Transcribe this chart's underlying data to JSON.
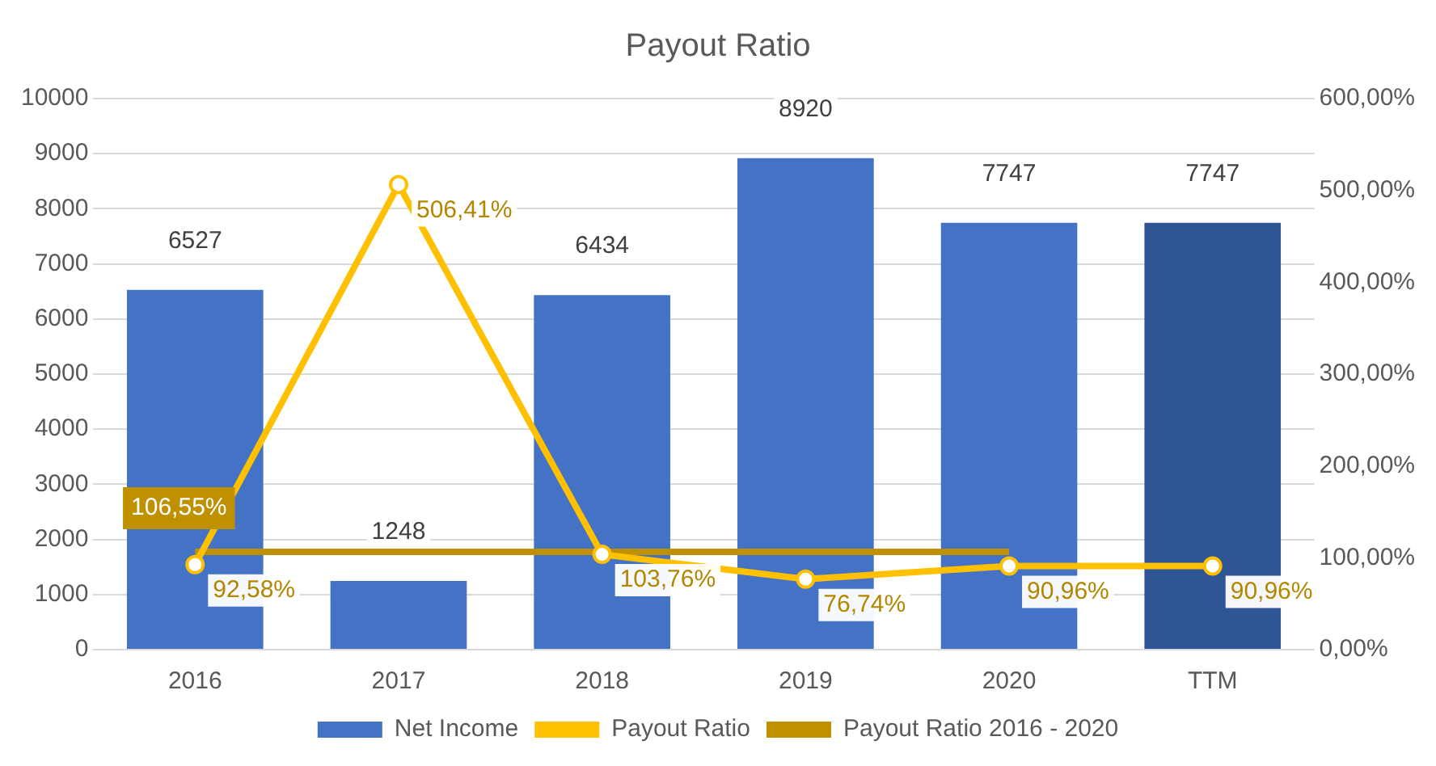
{
  "chart_data": {
    "type": "bar",
    "title": "Payout Ratio",
    "categories": [
      "2016",
      "2017",
      "2018",
      "2019",
      "2020",
      "TTM"
    ],
    "series": [
      {
        "name": "Net Income",
        "colors": [
          "#4472c4",
          "#4472c4",
          "#4472c4",
          "#4472c4",
          "#4472c4",
          "#2f5597"
        ],
        "color": "#4472c4",
        "values": [
          6527,
          1248,
          6434,
          8920,
          7747,
          7747
        ],
        "value_labels": [
          "6527",
          "1248",
          "6434",
          "8920",
          "7747",
          "7747"
        ]
      },
      {
        "name": "Payout Ratio",
        "type": "line",
        "axis": "y2",
        "color": "#ffc000",
        "marker": "circle",
        "values": [
          92.58,
          506.41,
          103.76,
          76.74,
          90.96,
          90.96
        ],
        "value_labels": [
          "92,58%",
          "506,41%",
          "103,76%",
          "76,74%",
          "90,96%",
          "90,96%"
        ]
      },
      {
        "name": "Payout Ratio 2016 - 2020",
        "type": "line",
        "axis": "y2",
        "color": "#bf9000",
        "marker": "none",
        "values": [
          106.55,
          106.55,
          106.55,
          106.55,
          106.55,
          null
        ],
        "value_labels": [
          "106,55%",
          null,
          null,
          null,
          null,
          null
        ]
      }
    ],
    "ylim": [
      0,
      10000
    ],
    "yticks": [
      0,
      1000,
      2000,
      3000,
      4000,
      5000,
      6000,
      7000,
      8000,
      9000,
      10000
    ],
    "y2lim": [
      0,
      600
    ],
    "y2ticks": [
      {
        "value": 0,
        "label": "0,00%"
      },
      {
        "value": 100,
        "label": "100,00%"
      },
      {
        "value": 200,
        "label": "200,00%"
      },
      {
        "value": 300,
        "label": "300,00%"
      },
      {
        "value": 400,
        "label": "400,00%"
      },
      {
        "value": 500,
        "label": "500,00%"
      },
      {
        "value": 600,
        "label": "600,00%"
      }
    ],
    "grid": "y",
    "legend": "bottom"
  }
}
